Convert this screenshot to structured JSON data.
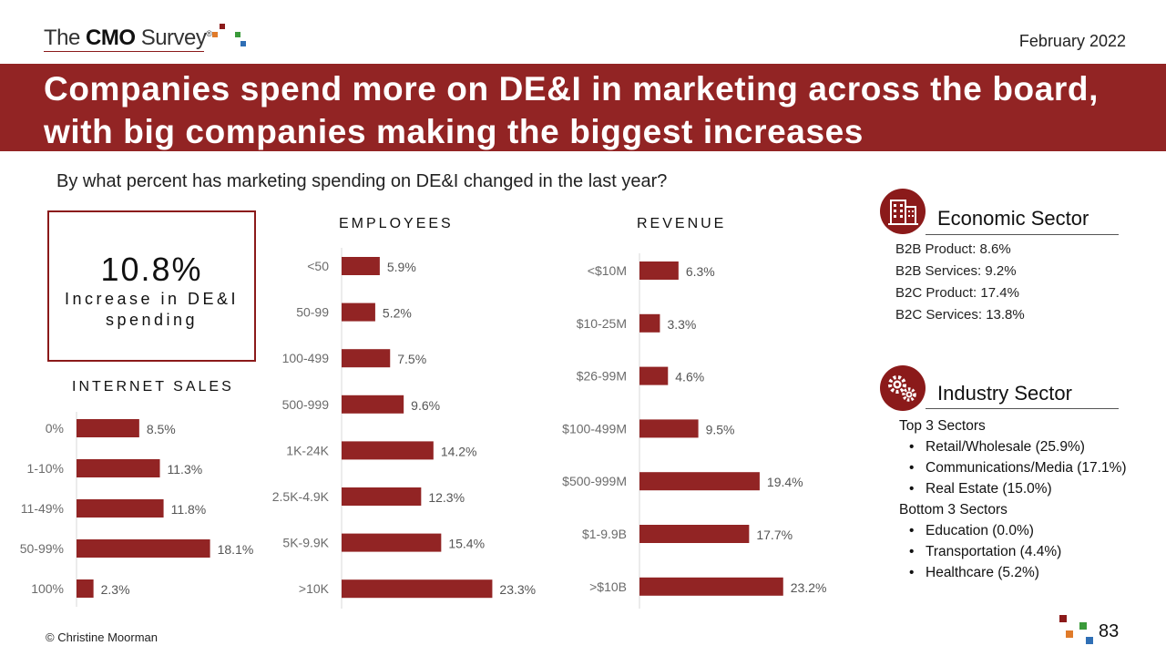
{
  "header": {
    "logo_text_pre": "The ",
    "logo_text_bold": "CMO",
    "logo_text_post": " Survey",
    "logo_mark": "®",
    "date": "February 2022"
  },
  "title": {
    "line1": "Companies spend more on DE&I in marketing across the board,",
    "line2": "with big companies making the biggest increases"
  },
  "question": "By what percent has marketing spending on DE&I changed in the last year?",
  "highlight": {
    "value": "10.8%",
    "label_line1": "Increase in DE&I",
    "label_line2": "spending"
  },
  "chart_data": [
    {
      "type": "bar",
      "orientation": "horizontal",
      "title": "INTERNET SALES",
      "categories": [
        "0%",
        "1-10%",
        "11-49%",
        "50-99%",
        "100%"
      ],
      "values": [
        8.5,
        11.3,
        11.8,
        18.1,
        2.3
      ],
      "data_labels": [
        "8.5%",
        "11.3%",
        "11.8%",
        "18.1%",
        "2.3%"
      ],
      "color": "#922424"
    },
    {
      "type": "bar",
      "orientation": "horizontal",
      "title": "EMPLOYEES",
      "categories": [
        "<50",
        "50-99",
        "100-499",
        "500-999",
        "1K-24K",
        "2.5K-4.9K",
        "5K-9.9K",
        ">10K"
      ],
      "values": [
        5.9,
        5.2,
        7.5,
        9.6,
        14.2,
        12.3,
        15.4,
        23.3
      ],
      "data_labels": [
        "5.9%",
        "5.2%",
        "7.5%",
        "9.6%",
        "14.2%",
        "12.3%",
        "15.4%",
        "23.3%"
      ],
      "color": "#922424"
    },
    {
      "type": "bar",
      "orientation": "horizontal",
      "title": "REVENUE",
      "categories": [
        "<$10M",
        "$10-25M",
        "$26-99M",
        "$100-499M",
        "$500-999M",
        "$1-9.9B",
        ">$10B"
      ],
      "values": [
        6.3,
        3.3,
        4.6,
        9.5,
        19.4,
        17.7,
        23.2
      ],
      "data_labels": [
        "6.3%",
        "3.3%",
        "4.6%",
        "9.5%",
        "19.4%",
        "17.7%",
        "23.2%"
      ],
      "color": "#922424"
    }
  ],
  "economic_sector": {
    "title": "Economic Sector",
    "icon": "buildings-icon",
    "items": [
      "B2B Product: 8.6%",
      "B2B Services: 9.2%",
      "B2C Product: 17.4%",
      "B2C Services: 13.8%"
    ]
  },
  "industry_sector": {
    "title": "Industry Sector",
    "icon": "gears-icon",
    "top_label": "Top 3 Sectors",
    "top": [
      "Retail/Wholesale (25.9%)",
      "Communications/Media (17.1%)",
      "Real Estate (15.0%)"
    ],
    "bottom_label": "Bottom 3 Sectors",
    "bottom": [
      "Education (0.0%)",
      "Transportation (4.4%)",
      "Healthcare (5.2%)"
    ]
  },
  "footer": {
    "copyright": "© Christine Moorman",
    "page_number": "83"
  },
  "colors": {
    "brand_red": "#922424",
    "logo_squares": [
      "#8b1a1a",
      "#e07b2a",
      "#3a9a3a",
      "#2f6fb5"
    ]
  }
}
